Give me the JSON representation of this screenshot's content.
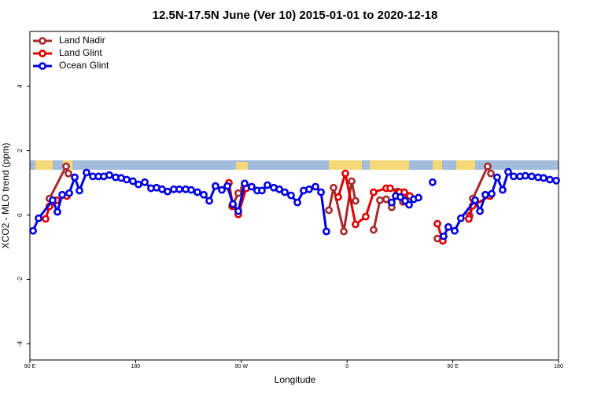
{
  "chart_data": {
    "type": "line",
    "title": "12.5N-17.5N June (Ver 10)   2015-01-01 to 2020-12-18",
    "xlabel": "Longitude",
    "ylabel": "XCO2 - MLO trend (ppm)",
    "xlim": [
      90,
      540
    ],
    "ylim": [
      -4.5,
      5.7
    ],
    "xticks": [
      {
        "value": 90,
        "label": "90 E"
      },
      180,
      {
        "value": 270,
        "label": "90 W"
      },
      {
        "value": 360,
        "label": "0"
      },
      {
        "value": 450,
        "label": "90 E"
      },
      {
        "value": 540,
        "label": "180"
      }
    ],
    "yticks": [
      -4,
      -2,
      0,
      2,
      4
    ],
    "legend": "top-left",
    "series": [
      {
        "name": "Land Nadir",
        "color": "#a52a2a",
        "x": [
          106.7,
          120.8,
          122.8,
          null,
          262.1,
          267.4,
          272.1,
          null,
          344.5,
          348.5,
          357.2,
          363.9,
          367.2,
          null,
          382.6,
          388.0,
          393.3,
          398.0,
          402.8,
          407.5,
          412.2,
          null,
          436.9,
          null,
          464.3,
          467.0,
          479.7,
          482.4
        ],
        "values": [
          0.51,
          1.51,
          1.29,
          null,
          0.27,
          0.68,
          0.83,
          null,
          0.15,
          0.85,
          -0.51,
          1.05,
          0.44,
          null,
          -0.46,
          0.46,
          0.49,
          0.24,
          0.73,
          0.41,
          0.59,
          null,
          -0.73,
          null,
          -0.02,
          0.51,
          1.51,
          1.29
        ]
      },
      {
        "name": "Land Glint",
        "color": "#e00000",
        "x": [
          103.4,
          106.7,
          112.8,
          121.5,
          null,
          259.4,
          262.8,
          267.4,
          274.1,
          null,
          352.5,
          358.5,
          367.2,
          375.9,
          382.6,
          393.3,
          396.7,
          404.7,
          408.7,
          413.4,
          null,
          436.9,
          441.5,
          null,
          463.6,
          467.0,
          481.7
        ],
        "values": [
          -0.12,
          0.27,
          0.46,
          0.59,
          null,
          1.0,
          0.29,
          0.02,
          0.83,
          null,
          0.56,
          1.29,
          -0.29,
          -0.05,
          0.71,
          0.83,
          0.83,
          0.71,
          0.71,
          0.59,
          null,
          -0.27,
          -0.8,
          null,
          -0.12,
          0.29,
          0.59
        ]
      },
      {
        "name": "Ocean Glint",
        "color": "#0000e0",
        "x": [
          92.7,
          97.4,
          109.4,
          113.4,
          117.5,
          123.5,
          128.2,
          132.2,
          138.2,
          143.6,
          148.3,
          152.9,
          157.6,
          163.0,
          167.7,
          172.4,
          177.7,
          182.4,
          187.8,
          193.1,
          197.8,
          202.5,
          207.2,
          212.5,
          217.2,
          222.6,
          227.3,
          232.6,
          238.0,
          242.7,
          248.0,
          253.4,
          258.1,
          262.8,
          267.4,
          272.8,
          278.8,
          283.5,
          287.5,
          292.2,
          297.6,
          302.3,
          307.0,
          312.3,
          317.7,
          323.0,
          327.7,
          333.1,
          337.8,
          342.4,
          null,
          398.0,
          401.4,
          405.4,
          409.4,
          412.8,
          416.8,
          420.8,
          null,
          432.8,
          null,
          442.2,
          446.2,
          451.6,
          456.9,
          469.0,
          473.1,
          477.7,
          483.1,
          487.7,
          492.4,
          497.1,
          501.8,
          507.2,
          511.8,
          517.2,
          522.6,
          527.3,
          532.6,
          538.0
        ],
        "values": [
          -0.49,
          -0.1,
          0.46,
          0.1,
          0.63,
          0.68,
          1.17,
          0.76,
          1.32,
          1.2,
          1.2,
          1.2,
          1.24,
          1.17,
          1.15,
          1.1,
          1.05,
          0.95,
          1.02,
          0.83,
          0.85,
          0.8,
          0.73,
          0.8,
          0.8,
          0.8,
          0.78,
          0.71,
          0.63,
          0.44,
          0.9,
          0.78,
          0.9,
          0.34,
          0.12,
          0.98,
          0.88,
          0.76,
          0.76,
          0.93,
          0.85,
          0.8,
          0.71,
          0.61,
          0.39,
          0.76,
          0.8,
          0.88,
          0.71,
          -0.51,
          null,
          0.39,
          0.59,
          0.56,
          0.44,
          0.32,
          0.49,
          0.54,
          null,
          1.02,
          null,
          -0.66,
          -0.37,
          -0.49,
          -0.1,
          0.46,
          0.12,
          0.63,
          0.66,
          1.17,
          0.78,
          1.34,
          1.2,
          1.2,
          1.22,
          1.2,
          1.17,
          1.15,
          1.1,
          1.07
        ]
      }
    ]
  }
}
